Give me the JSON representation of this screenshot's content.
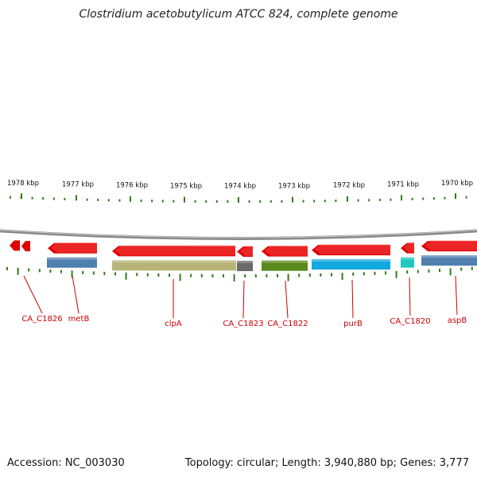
{
  "title": "Clostridium acetobutylicum ATCC 824, complete genome",
  "footer": {
    "accession": "Accession: NC_003030",
    "topology_info": "Topology: circular; Length: 3,940,880 bp; Genes: 3,777"
  },
  "scale_labels": [
    {
      "text": "1978 kbp",
      "kbp": 1978
    },
    {
      "text": "1977 kbp",
      "kbp": 1977
    },
    {
      "text": "1976 kbp",
      "kbp": 1976
    },
    {
      "text": "1975 kbp",
      "kbp": 1975
    },
    {
      "text": "1974 kbp",
      "kbp": 1974
    },
    {
      "text": "1973 kbp",
      "kbp": 1973
    },
    {
      "text": "1972 kbp",
      "kbp": 1972
    },
    {
      "text": "1971 kbp",
      "kbp": 1971
    },
    {
      "text": "1970 kbp",
      "kbp": 1970
    }
  ],
  "genes": [
    {
      "label": "CA_C1826",
      "color": "#e00000",
      "strand": "reverse"
    },
    {
      "label": "metB",
      "color": "#e00000",
      "strand": "reverse",
      "feature_color": "#4f7fae"
    },
    {
      "label": "clpA",
      "color": "#e00000",
      "strand": "reverse",
      "feature_color": "#b7b478"
    },
    {
      "label": "CA_C1823",
      "color": "#e00000",
      "strand": "reverse",
      "feature_color": "#6a6a6a"
    },
    {
      "label": "CA_C1822",
      "color": "#e00000",
      "strand": "reverse",
      "feature_color": "#5b8a1e"
    },
    {
      "label": "purB",
      "color": "#e00000",
      "strand": "reverse",
      "feature_color": "#14a8e0"
    },
    {
      "label": "CA_C1820",
      "color": "#e00000",
      "strand": "reverse",
      "feature_color": "#1cc8c0"
    },
    {
      "label": "aspB",
      "color": "#e00000",
      "strand": "reverse",
      "feature_color": "#4f7fae"
    }
  ],
  "colors": {
    "label_text": "#cc0000",
    "tick": "#2e7d1a",
    "backbone": "#8a8a8a"
  }
}
